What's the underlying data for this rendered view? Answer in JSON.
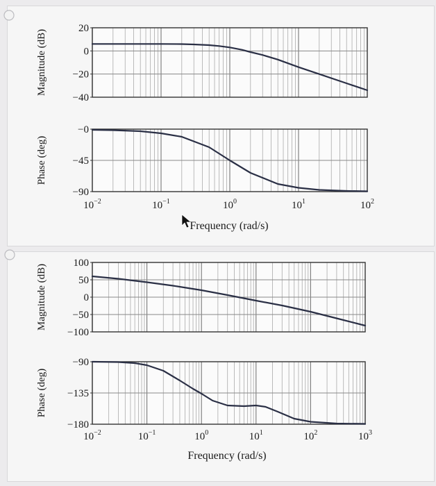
{
  "options": [
    {
      "id": "option-1",
      "plots": [
        {
          "name": "magnitude",
          "ylabel": "Magnitude (dB)",
          "yticks": [
            "20",
            "0",
            "−20",
            "−40"
          ],
          "ytick_values": [
            20,
            0,
            -20,
            -40
          ],
          "ylim": [
            -45,
            25
          ]
        },
        {
          "name": "phase",
          "ylabel": "Phase (deg)",
          "yticks": [
            "−0",
            "−45",
            "−90"
          ],
          "ytick_values": [
            0,
            -45,
            -90
          ],
          "ylim": [
            -90,
            2
          ]
        }
      ],
      "xaxis": {
        "label": "Frequency (rad/s)",
        "scale": "log",
        "xlim": [
          0.01,
          100
        ],
        "ticks": [
          {
            "base": "10",
            "exp": "−2"
          },
          {
            "base": "10",
            "exp": "−1"
          },
          {
            "base": "10",
            "exp": "0"
          },
          {
            "base": "10",
            "exp": "1"
          },
          {
            "base": "10",
            "exp": "2"
          }
        ]
      }
    },
    {
      "id": "option-2",
      "plots": [
        {
          "name": "magnitude",
          "ylabel": "Magnitude (dB)",
          "yticks": [
            "100",
            "50",
            "0",
            "−50",
            "−100"
          ],
          "ytick_values": [
            100,
            50,
            0,
            -50,
            -100
          ],
          "ylim": [
            -100,
            100
          ]
        },
        {
          "name": "phase",
          "ylabel": "Phase (deg)",
          "yticks": [
            "−90",
            "−135",
            "−180"
          ],
          "ytick_values": [
            -90,
            -135,
            -180
          ],
          "ylim": [
            -180,
            -90
          ]
        }
      ],
      "xaxis": {
        "label": "Frequency (rad/s)",
        "scale": "log",
        "xlim": [
          0.01,
          1000
        ],
        "ticks": [
          {
            "base": "10",
            "exp": "−2"
          },
          {
            "base": "10",
            "exp": "−1"
          },
          {
            "base": "10",
            "exp": "0"
          },
          {
            "base": "10",
            "exp": "1"
          },
          {
            "base": "10",
            "exp": "2"
          },
          {
            "base": "10",
            "exp": "3"
          }
        ]
      }
    }
  ],
  "chart_data": [
    {
      "type": "line",
      "title": "",
      "xlabel": "",
      "ylabel": "Magnitude (dB)",
      "xscale": "log",
      "xlim": [
        0.01,
        100
      ],
      "ylim": [
        -45,
        25
      ],
      "grid": true,
      "series": [
        {
          "x": [
            0.01,
            0.03,
            0.1,
            0.2,
            0.3,
            0.5,
            0.7,
            1,
            1.5,
            2,
            3,
            5,
            10,
            20,
            50,
            100
          ],
          "y": [
            6,
            6,
            6,
            5.9,
            5.6,
            5,
            4.2,
            3,
            1,
            -1,
            -3.5,
            -7.5,
            -14,
            -20,
            -28,
            -34
          ]
        }
      ]
    },
    {
      "type": "line",
      "title": "",
      "xlabel": "Frequency (rad/s)",
      "ylabel": "Phase (deg)",
      "xscale": "log",
      "xlim": [
        0.01,
        100
      ],
      "ylim": [
        -90,
        0
      ],
      "grid": true,
      "series": [
        {
          "x": [
            0.01,
            0.02,
            0.05,
            0.1,
            0.2,
            0.5,
            1,
            2,
            5,
            10,
            20,
            50,
            100
          ],
          "y": [
            -1,
            -1.5,
            -3,
            -6,
            -11,
            -26,
            -45,
            -63,
            -79,
            -84.5,
            -87.5,
            -89,
            -89.5
          ]
        }
      ]
    },
    {
      "type": "line",
      "title": "",
      "xlabel": "",
      "ylabel": "Magnitude (dB)",
      "xscale": "log",
      "xlim": [
        0.01,
        1000
      ],
      "ylim": [
        -100,
        100
      ],
      "grid": true,
      "series": [
        {
          "x": [
            0.01,
            0.03,
            0.1,
            0.3,
            1,
            3,
            10,
            30,
            100,
            300,
            1000
          ],
          "y": [
            60,
            53,
            43,
            33,
            20,
            6,
            -10,
            -24,
            -42,
            -61,
            -82
          ]
        }
      ]
    },
    {
      "type": "line",
      "title": "",
      "xlabel": "Frequency (rad/s)",
      "ylabel": "Phase (deg)",
      "xscale": "log",
      "xlim": [
        0.01,
        1000
      ],
      "ylim": [
        -180,
        -90
      ],
      "grid": true,
      "series": [
        {
          "x": [
            0.01,
            0.03,
            0.06,
            0.1,
            0.2,
            0.4,
            0.7,
            1,
            1.6,
            3,
            6,
            10,
            15,
            25,
            50,
            100,
            300,
            1000
          ],
          "y": [
            -90,
            -90.5,
            -92,
            -95,
            -103,
            -117,
            -129,
            -136,
            -146,
            -153,
            -154,
            -153,
            -155,
            -162,
            -172,
            -176.5,
            -179,
            -179.5
          ]
        }
      ]
    }
  ]
}
